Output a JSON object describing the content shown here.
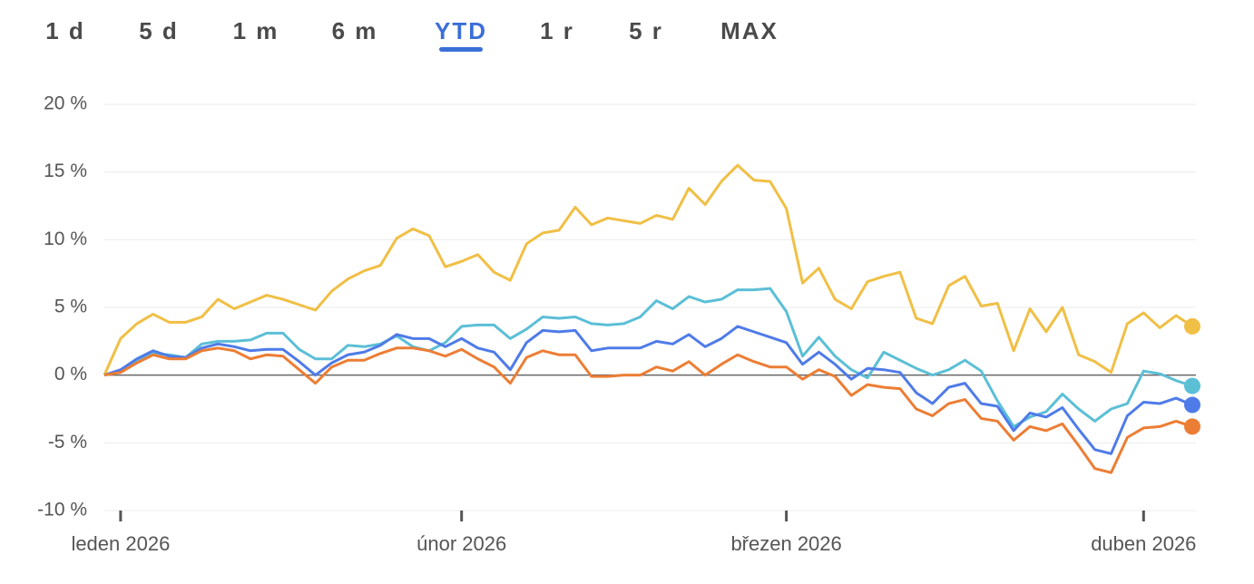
{
  "tabs": [
    "1 d",
    "5 d",
    "1 m",
    "6 m",
    "YTD",
    "1 r",
    "5 r",
    "MAX"
  ],
  "selected_tab": 4,
  "chart_data": {
    "type": "line",
    "x": [
      0,
      1,
      2,
      3,
      4,
      5,
      6,
      7,
      8,
      9,
      10,
      11,
      12,
      13,
      14,
      15,
      16,
      17,
      18,
      19,
      20,
      21,
      22,
      23,
      24,
      25,
      26,
      27,
      28,
      29,
      30,
      31,
      32,
      33,
      34,
      35,
      36,
      37,
      38,
      39,
      40,
      41,
      42,
      43,
      44,
      45,
      46,
      47,
      48,
      49,
      50,
      51,
      52,
      53,
      54,
      55,
      56,
      57,
      58,
      59,
      60,
      61,
      62,
      63,
      64,
      65,
      66,
      67
    ],
    "xlim": [
      0,
      67
    ],
    "xticks": [
      {
        "value": 1,
        "label": "leden 2026"
      },
      {
        "value": 22,
        "label": "únor 2026"
      },
      {
        "value": 42,
        "label": "březen 2026"
      },
      {
        "value": 64,
        "label": "duben 2026"
      }
    ],
    "ylim": [
      -10,
      20
    ],
    "yticks": [
      {
        "value": 20,
        "label": "20 %"
      },
      {
        "value": 15,
        "label": "15 %"
      },
      {
        "value": 10,
        "label": "10 %"
      },
      {
        "value": 5,
        "label": "5 %"
      },
      {
        "value": 0,
        "label": "0 %"
      },
      {
        "value": -5,
        "label": "-5 %"
      },
      {
        "value": -10,
        "label": "-10 %"
      }
    ],
    "grid": true,
    "series": [
      {
        "color": "#f0bf45",
        "values": [
          0,
          2.7,
          3.8,
          4.5,
          3.9,
          3.9,
          4.3,
          5.6,
          4.9,
          5.4,
          5.9,
          5.6,
          5.2,
          4.8,
          6.2,
          7.1,
          7.7,
          8.1,
          10.1,
          10.8,
          10.3,
          8.0,
          8.4,
          8.9,
          7.6,
          7.0,
          9.7,
          10.5,
          10.7,
          12.4,
          11.1,
          11.6,
          11.4,
          11.2,
          11.8,
          11.5,
          13.8,
          12.6,
          14.3,
          15.5,
          14.4,
          14.3,
          12.3,
          6.8,
          7.9,
          5.6,
          4.9,
          6.9,
          7.3,
          7.6,
          4.2,
          3.8,
          6.6,
          7.3,
          5.1,
          5.3,
          1.8,
          4.9,
          3.2,
          5.0,
          1.5,
          1.0,
          0.2,
          3.8,
          4.6,
          3.5,
          4.4,
          3.6
        ]
      },
      {
        "color": "#5bbfd6",
        "values": [
          0,
          0.3,
          1.0,
          1.6,
          1.5,
          1.3,
          2.3,
          2.5,
          2.5,
          2.6,
          3.1,
          3.1,
          1.9,
          1.2,
          1.2,
          2.2,
          2.1,
          2.3,
          2.9,
          2.1,
          1.8,
          2.4,
          3.6,
          3.7,
          3.7,
          2.7,
          3.4,
          4.3,
          4.2,
          4.3,
          3.8,
          3.7,
          3.8,
          4.3,
          5.5,
          4.9,
          5.8,
          5.4,
          5.6,
          6.3,
          6.3,
          6.4,
          4.7,
          1.4,
          2.8,
          1.4,
          0.4,
          -0.2,
          1.7,
          1.1,
          0.5,
          0.0,
          0.4,
          1.1,
          0.3,
          -1.9,
          -3.8,
          -3.1,
          -2.7,
          -1.4,
          -2.5,
          -3.4,
          -2.5,
          -2.1,
          0.3,
          0.1,
          -0.4,
          -0.8
        ]
      },
      {
        "color": "#4f7be8",
        "values": [
          0,
          0.4,
          1.2,
          1.8,
          1.4,
          1.3,
          2.0,
          2.3,
          2.1,
          1.8,
          1.9,
          1.9,
          1.0,
          0.0,
          0.9,
          1.5,
          1.7,
          2.2,
          3.0,
          2.7,
          2.7,
          2.1,
          2.7,
          2.0,
          1.7,
          0.4,
          2.4,
          3.3,
          3.2,
          3.3,
          1.8,
          2.0,
          2.0,
          2.0,
          2.5,
          2.3,
          3.0,
          2.1,
          2.7,
          3.6,
          3.2,
          2.8,
          2.4,
          0.8,
          1.7,
          0.8,
          -0.3,
          0.5,
          0.4,
          0.2,
          -1.3,
          -2.1,
          -0.9,
          -0.6,
          -2.1,
          -2.3,
          -4.1,
          -2.8,
          -3.1,
          -2.4,
          -4.0,
          -5.5,
          -5.8,
          -3.0,
          -2.0,
          -2.1,
          -1.7,
          -2.2
        ]
      },
      {
        "color": "#ec7d34",
        "values": [
          0,
          0.2,
          0.9,
          1.5,
          1.2,
          1.2,
          1.8,
          2.0,
          1.8,
          1.2,
          1.5,
          1.4,
          0.4,
          -0.6,
          0.6,
          1.1,
          1.1,
          1.6,
          2.0,
          2.0,
          1.8,
          1.4,
          1.9,
          1.2,
          0.6,
          -0.6,
          1.3,
          1.8,
          1.5,
          1.5,
          -0.1,
          -0.1,
          0.0,
          0.0,
          0.6,
          0.3,
          1.0,
          0.0,
          0.8,
          1.5,
          1.0,
          0.6,
          0.6,
          -0.3,
          0.4,
          -0.1,
          -1.5,
          -0.7,
          -0.9,
          -1.0,
          -2.5,
          -3.0,
          -2.1,
          -1.8,
          -3.2,
          -3.4,
          -4.8,
          -3.8,
          -4.1,
          -3.6,
          -5.2,
          -6.9,
          -7.2,
          -4.6,
          -3.9,
          -3.8,
          -3.4,
          -3.8
        ]
      }
    ]
  }
}
